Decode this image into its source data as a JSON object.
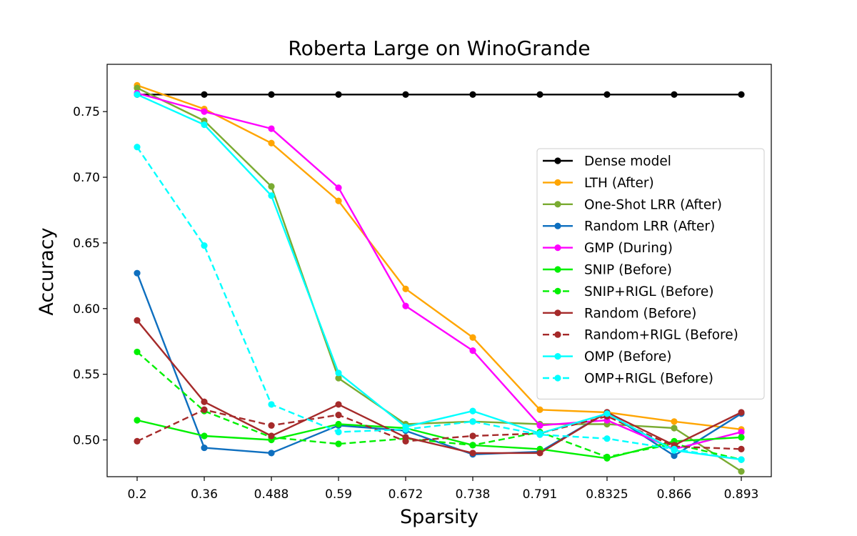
{
  "chart_data": {
    "type": "line",
    "title": "Roberta Large on WinoGrande",
    "xlabel": "Sparsity",
    "ylabel": "Accuracy",
    "categories": [
      "0.2",
      "0.36",
      "0.488",
      "0.59",
      "0.672",
      "0.738",
      "0.791",
      "0.8325",
      "0.866",
      "0.893"
    ],
    "ylim": [
      0.472,
      0.786
    ],
    "yticks": [
      "0.50",
      "0.55",
      "0.60",
      "0.65",
      "0.70",
      "0.75"
    ],
    "ytick_values": [
      0.5,
      0.55,
      0.6,
      0.65,
      0.7,
      0.75
    ],
    "grid": false,
    "legend_position": "center-right",
    "series": [
      {
        "name": "Dense model",
        "color": "#000000",
        "dashed": false,
        "values": [
          0.763,
          0.763,
          0.763,
          0.763,
          0.763,
          0.763,
          0.763,
          0.763,
          0.763,
          0.763
        ]
      },
      {
        "name": "LTH (After)",
        "color": "#ffa500",
        "dashed": false,
        "values": [
          0.77,
          0.752,
          0.726,
          0.682,
          0.615,
          0.578,
          0.523,
          0.521,
          0.514,
          0.508
        ]
      },
      {
        "name": "One-Shot LRR (After)",
        "color": "#7aab32",
        "dashed": false,
        "values": [
          0.768,
          0.743,
          0.693,
          0.547,
          0.512,
          0.514,
          0.512,
          0.512,
          0.509,
          0.476
        ]
      },
      {
        "name": "Random LRR (After)",
        "color": "#0e6fbf",
        "dashed": false,
        "values": [
          0.627,
          0.494,
          0.49,
          0.511,
          0.507,
          0.489,
          0.491,
          0.521,
          0.488,
          0.52
        ]
      },
      {
        "name": "GMP (During)",
        "color": "#ff00ff",
        "dashed": false,
        "values": [
          0.764,
          0.75,
          0.737,
          0.692,
          0.602,
          0.568,
          0.511,
          0.515,
          0.493,
          0.506
        ]
      },
      {
        "name": "SNIP (Before)",
        "color": "#00f000",
        "dashed": false,
        "values": [
          0.515,
          0.503,
          0.5,
          0.512,
          0.509,
          0.496,
          0.493,
          0.486,
          0.499,
          0.502
        ]
      },
      {
        "name": "SNIP+RIGL (Before)",
        "color": "#00f000",
        "dashed": true,
        "values": [
          0.567,
          0.522,
          0.502,
          0.497,
          0.501,
          0.496,
          0.506,
          0.487,
          0.497,
          0.485
        ]
      },
      {
        "name": "Random (Before)",
        "color": "#a52a2a",
        "dashed": false,
        "values": [
          0.591,
          0.529,
          0.503,
          0.527,
          0.502,
          0.49,
          0.49,
          0.521,
          0.496,
          0.521
        ]
      },
      {
        "name": "Random+RIGL (Before)",
        "color": "#a52a2a",
        "dashed": true,
        "values": [
          0.499,
          0.523,
          0.511,
          0.519,
          0.499,
          0.503,
          0.505,
          0.518,
          0.495,
          0.493
        ]
      },
      {
        "name": "OMP (Before)",
        "color": "#00ffff",
        "dashed": false,
        "values": [
          0.763,
          0.74,
          0.686,
          0.551,
          0.51,
          0.522,
          0.505,
          0.52,
          0.492,
          0.485
        ]
      },
      {
        "name": "OMP+RIGL (Before)",
        "color": "#00ffff",
        "dashed": true,
        "values": [
          0.723,
          0.648,
          0.527,
          0.506,
          0.508,
          0.514,
          0.504,
          0.501,
          0.493,
          0.485
        ]
      }
    ]
  }
}
